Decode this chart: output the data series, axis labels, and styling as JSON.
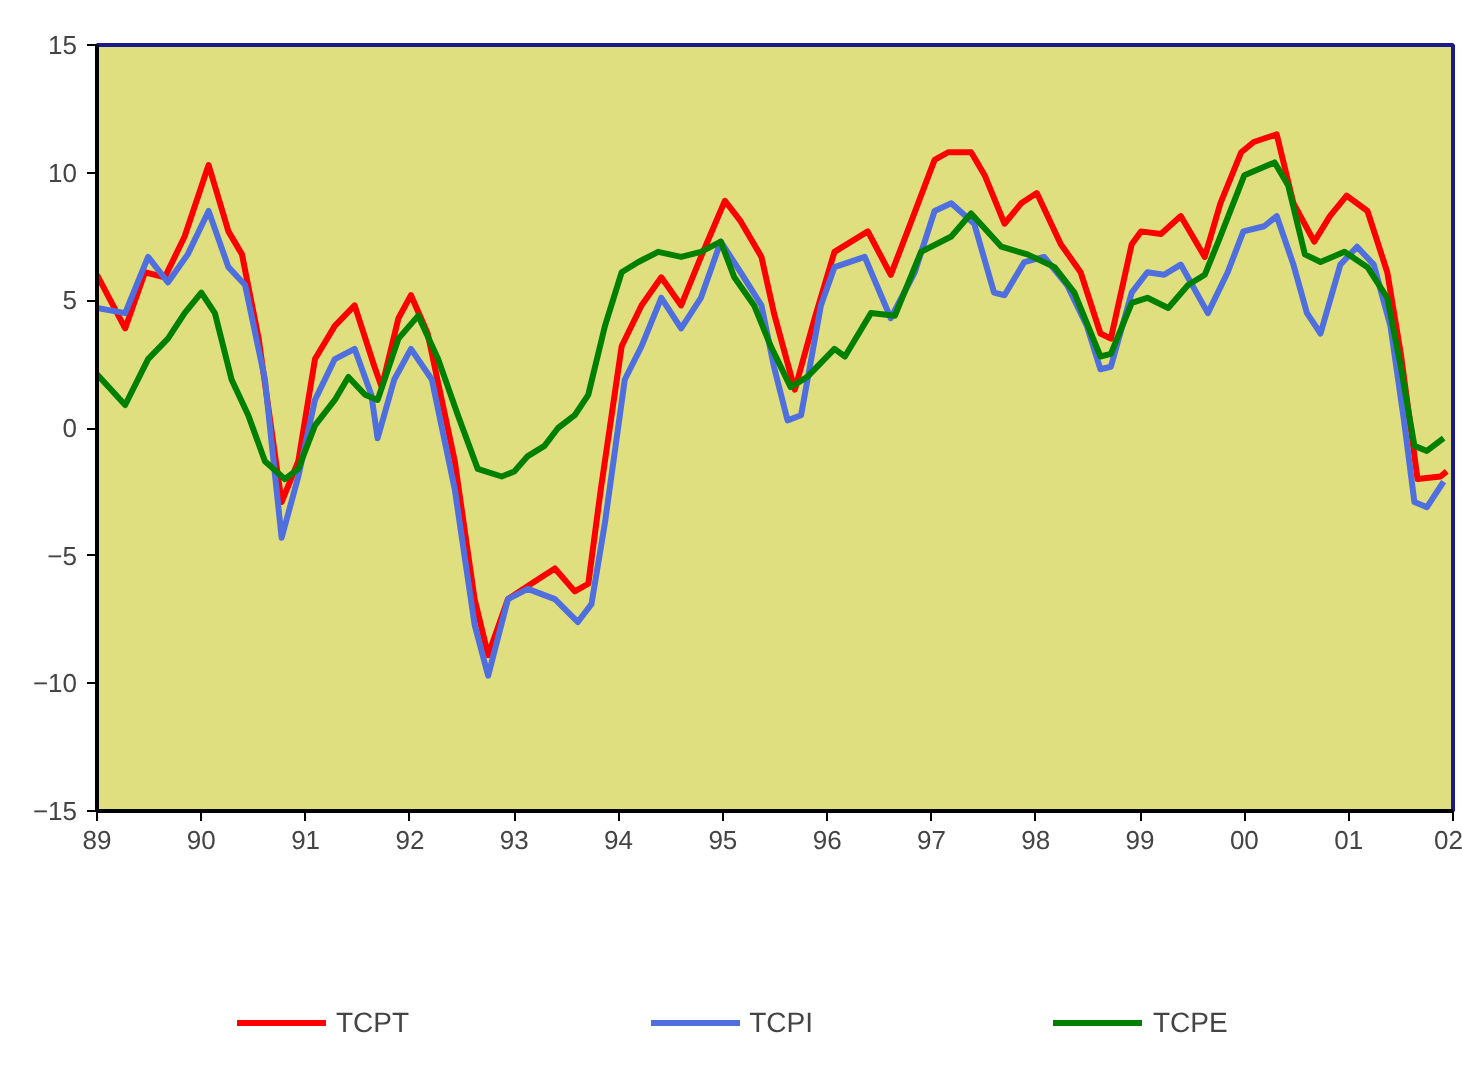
{
  "chart_data": {
    "type": "line",
    "xlim": [
      1989,
      2002
    ],
    "ylim": [
      -15,
      15
    ],
    "xticks": [
      {
        "value": 1989,
        "label": "89"
      },
      {
        "value": 1990,
        "label": "90"
      },
      {
        "value": 1991,
        "label": "91"
      },
      {
        "value": 1992,
        "label": "92"
      },
      {
        "value": 1993,
        "label": "93"
      },
      {
        "value": 1994,
        "label": "94"
      },
      {
        "value": 1995,
        "label": "95"
      },
      {
        "value": 1996,
        "label": "96"
      },
      {
        "value": 1997,
        "label": "97"
      },
      {
        "value": 1998,
        "label": "98"
      },
      {
        "value": 1999,
        "label": "99"
      },
      {
        "value": 2000,
        "label": "00"
      },
      {
        "value": 2001,
        "label": "01"
      },
      {
        "value": 2002,
        "label": "02"
      }
    ],
    "yticks": [
      -15,
      -10,
      -5,
      0,
      5,
      10,
      15
    ],
    "grid": false,
    "legend": "bottom",
    "marker": "none",
    "line_style": "solid",
    "series": [
      {
        "name": "TCPT",
        "color": "#ff0000",
        "x": [
          1989.0,
          1989.27,
          1989.46,
          1989.65,
          1989.84,
          1990.07,
          1990.26,
          1990.39,
          1990.55,
          1990.77,
          1990.93,
          1991.09,
          1991.28,
          1991.47,
          1991.66,
          1991.73,
          1991.89,
          1992.01,
          1992.17,
          1992.43,
          1992.62,
          1992.75,
          1992.94,
          1993.2,
          1993.39,
          1993.58,
          1993.71,
          1993.83,
          1994.03,
          1994.22,
          1994.41,
          1994.6,
          1994.79,
          1995.02,
          1995.17,
          1995.37,
          1995.49,
          1995.69,
          1995.88,
          1996.07,
          1996.39,
          1996.61,
          1996.77,
          1997.03,
          1997.16,
          1997.38,
          1997.51,
          1997.7,
          1997.86,
          1998.01,
          1998.24,
          1998.43,
          1998.62,
          1998.72,
          1998.92,
          1999.01,
          1999.2,
          1999.39,
          1999.62,
          1999.77,
          1999.97,
          2000.09,
          2000.31,
          2000.47,
          2000.67,
          2000.82,
          2000.98,
          2001.18,
          2001.37,
          2001.5,
          2001.66,
          2001.88,
          2001.94
        ],
        "values": [
          6.0,
          3.9,
          6.1,
          5.9,
          7.5,
          10.3,
          7.7,
          6.8,
          3.5,
          -2.9,
          -1.3,
          2.7,
          4.0,
          4.8,
          2.4,
          1.6,
          4.3,
          5.2,
          3.7,
          -1.3,
          -6.7,
          -8.9,
          -6.7,
          -6.0,
          -5.5,
          -6.4,
          -6.1,
          -2.4,
          3.2,
          4.8,
          5.9,
          4.8,
          6.7,
          8.9,
          8.1,
          6.7,
          4.5,
          1.5,
          4.3,
          6.9,
          7.7,
          6.0,
          7.7,
          10.5,
          10.8,
          10.8,
          9.9,
          8.0,
          8.8,
          9.2,
          7.2,
          6.1,
          3.7,
          3.5,
          7.2,
          7.7,
          7.6,
          8.3,
          6.7,
          8.8,
          10.8,
          11.2,
          11.5,
          8.8,
          7.3,
          8.3,
          9.1,
          8.5,
          6.1,
          2.9,
          -2.0,
          -1.9,
          -1.7
        ]
      },
      {
        "name": "TCPI",
        "color": "#4f6fdf",
        "x": [
          1989.0,
          1989.27,
          1989.49,
          1989.68,
          1989.87,
          1990.07,
          1990.26,
          1990.42,
          1990.61,
          1990.77,
          1990.93,
          1991.09,
          1991.28,
          1991.47,
          1991.63,
          1991.69,
          1991.85,
          1992.01,
          1992.21,
          1992.43,
          1992.62,
          1992.75,
          1992.94,
          1993.13,
          1993.39,
          1993.61,
          1993.74,
          1993.87,
          1994.06,
          1994.22,
          1994.41,
          1994.6,
          1994.79,
          1994.98,
          1995.17,
          1995.37,
          1995.49,
          1995.62,
          1995.75,
          1995.94,
          1996.07,
          1996.36,
          1996.61,
          1996.84,
          1997.03,
          1997.19,
          1997.41,
          1997.6,
          1997.7,
          1997.89,
          1998.08,
          1998.3,
          1998.49,
          1998.62,
          1998.72,
          1998.92,
          1999.07,
          1999.23,
          1999.39,
          1999.65,
          1999.84,
          1999.99,
          2000.19,
          2000.31,
          2000.47,
          2000.6,
          2000.73,
          2000.92,
          2001.08,
          2001.24,
          2001.4,
          2001.53,
          2001.63,
          2001.75,
          2001.91
        ],
        "values": [
          4.7,
          4.5,
          6.7,
          5.7,
          6.8,
          8.5,
          6.3,
          5.6,
          1.9,
          -4.3,
          -1.9,
          1.1,
          2.7,
          3.1,
          1.3,
          -0.4,
          1.9,
          3.1,
          1.9,
          -2.4,
          -7.7,
          -9.7,
          -6.7,
          -6.3,
          -6.7,
          -7.6,
          -6.9,
          -3.7,
          1.9,
          3.2,
          5.1,
          3.9,
          5.1,
          7.3,
          6.1,
          4.8,
          2.4,
          0.3,
          0.5,
          4.8,
          6.3,
          6.7,
          4.3,
          6.1,
          8.5,
          8.8,
          8.0,
          5.3,
          5.2,
          6.5,
          6.7,
          5.6,
          4.0,
          2.3,
          2.4,
          5.3,
          6.1,
          6.0,
          6.4,
          4.5,
          6.1,
          7.7,
          7.9,
          8.3,
          6.4,
          4.5,
          3.7,
          6.4,
          7.1,
          6.4,
          4.0,
          0.3,
          -2.9,
          -3.1,
          -2.1
        ]
      },
      {
        "name": "TCPE",
        "color": "#008000",
        "x": [
          1989.0,
          1989.27,
          1989.49,
          1989.68,
          1989.84,
          1990.0,
          1990.13,
          1990.29,
          1990.45,
          1990.61,
          1990.8,
          1990.93,
          1991.09,
          1991.28,
          1991.41,
          1991.57,
          1991.69,
          1991.89,
          1992.08,
          1992.27,
          1992.46,
          1992.65,
          1992.88,
          1993.0,
          1993.13,
          1993.29,
          1993.42,
          1993.58,
          1993.71,
          1993.87,
          1994.03,
          1994.19,
          1994.38,
          1994.6,
          1994.79,
          1994.98,
          1995.11,
          1995.3,
          1995.46,
          1995.65,
          1995.81,
          1996.07,
          1996.17,
          1996.42,
          1996.65,
          1996.9,
          1997.19,
          1997.38,
          1997.67,
          1997.92,
          1998.18,
          1998.37,
          1998.62,
          1998.72,
          1998.92,
          1999.07,
          1999.27,
          1999.46,
          1999.62,
          1999.75,
          2000.0,
          2000.29,
          2000.42,
          2000.58,
          2000.73,
          2000.96,
          2001.18,
          2001.37,
          2001.5,
          2001.63,
          2001.75,
          2001.91
        ],
        "values": [
          2.1,
          0.9,
          2.7,
          3.5,
          4.5,
          5.3,
          4.5,
          1.9,
          0.5,
          -1.3,
          -2.0,
          -1.6,
          0.1,
          1.1,
          2.0,
          1.3,
          1.1,
          3.5,
          4.4,
          2.7,
          0.5,
          -1.6,
          -1.9,
          -1.7,
          -1.1,
          -0.7,
          0.0,
          0.5,
          1.3,
          4.0,
          6.1,
          6.5,
          6.9,
          6.7,
          6.9,
          7.3,
          5.9,
          4.8,
          3.2,
          1.6,
          2.0,
          3.1,
          2.8,
          4.5,
          4.4,
          6.9,
          7.5,
          8.4,
          7.1,
          6.8,
          6.3,
          5.3,
          2.8,
          2.9,
          4.9,
          5.1,
          4.7,
          5.6,
          6.0,
          7.3,
          9.9,
          10.4,
          9.5,
          6.8,
          6.5,
          6.9,
          6.3,
          5.1,
          2.4,
          -0.7,
          -0.9,
          -0.4
        ]
      }
    ]
  }
}
